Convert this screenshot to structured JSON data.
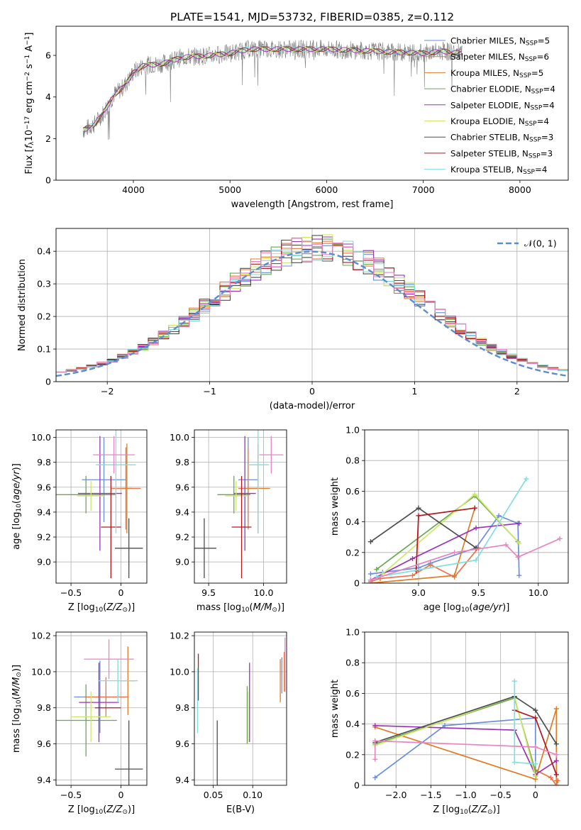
{
  "figure_title": "PLATE=1541, MJD=53732, FIBERID=0385, z=0.112",
  "colors": {
    "Chabrier MILES": "#6a8fd6",
    "Salpeter MILES": "#e9744a",
    "Kroupa MILES": "#e07b28",
    "Chabrier ELODIE": "#6aa84f",
    "Salpeter ELODIE": "#9b30b7",
    "Kroupa ELODIE": "#cde86a",
    "Chabrier STELIB": "#4d4d4d",
    "Salpeter STELIB": "#b3191c",
    "Kroupa STELIB": "#80dede",
    "pink": "#e884c0",
    "normal_curve": "#5b8bd0",
    "data_spectrum": "#7f7f7f",
    "grid": "#b0b0b0"
  },
  "chart_data": [
    {
      "id": "spectrum",
      "type": "line",
      "title": "PLATE=1541, MJD=53732, FIBERID=0385, z=0.112",
      "xlabel": "wavelength [Angstrom, rest frame]",
      "ylabel": "Flux [f_λ 10^-17 erg cm^-2 s^-1 A^-1]",
      "xlim": [
        3200,
        8500
      ],
      "ylim": [
        0,
        7.4
      ],
      "xticks": [
        4000,
        5000,
        6000,
        7000,
        8000
      ],
      "yticks": [
        0,
        2,
        4,
        6
      ],
      "grid": false,
      "legend_position": "right",
      "legend": [
        "Chabrier MILES, N_SSP=5",
        "Salpeter MILES, N_SSP=6",
        "Kroupa MILES, N_SSP=5",
        "Chabrier ELODIE, N_SSP=4",
        "Salpeter ELODIE, N_SSP=4",
        "Kroupa ELODIE, N_SSP=4",
        "Chabrier STELIB, N_SSP=3",
        "Salpeter STELIB, N_SSP=3",
        "Kroupa STELIB, N_SSP=4"
      ],
      "continuum": {
        "x": [
          3480,
          3600,
          3700,
          3800,
          3900,
          3950,
          4000,
          4100,
          4300,
          4500,
          4800,
          5000,
          5200,
          5500,
          6000,
          6500,
          7000,
          7200,
          7400
        ],
        "y": [
          2.4,
          2.7,
          3.3,
          4.1,
          4.5,
          4.8,
          5.2,
          5.5,
          5.6,
          5.9,
          6.0,
          6.1,
          6.3,
          6.3,
          6.3,
          6.2,
          6.1,
          6.2,
          6.1
        ]
      }
    },
    {
      "id": "residuals",
      "type": "line",
      "xlabel": "(data-model)/error",
      "ylabel": "Normed distribution",
      "xlim": [
        -2.5,
        2.5
      ],
      "ylim": [
        0,
        0.47
      ],
      "xticks": [
        -2,
        -1,
        0,
        1,
        2
      ],
      "yticks": [
        0.0,
        0.1,
        0.2,
        0.3,
        0.4
      ],
      "grid": true,
      "legend_position": "top-right",
      "legend": [
        "𝒩(0, 1)"
      ],
      "bin_width": 0.1,
      "normal": {
        "mean": 0,
        "sigma": 1
      }
    },
    {
      "id": "age_vs_Z",
      "type": "scatter",
      "xlabel": "Z [log10(Z/Z⊙)]",
      "ylabel": "age [log10(age/yr)]",
      "xlim": [
        -0.65,
        0.26
      ],
      "ylim": [
        8.83,
        10.06
      ],
      "xticks": [
        -0.5,
        0.0
      ],
      "yticks": [
        9.0,
        9.2,
        9.4,
        9.6,
        9.8,
        10.0
      ],
      "grid": true,
      "crosses": [
        {
          "color": "Chabrier MILES",
          "x": -0.17,
          "xerr": 0.22,
          "y": 9.66,
          "yerr": 0.34
        },
        {
          "color": "Salpeter MILES",
          "x": 0.05,
          "xerr": 0.15,
          "y": 9.59,
          "yerr": 0.33
        },
        {
          "color": "Kroupa MILES",
          "x": 0.06,
          "xerr": 0.05,
          "y": 9.59,
          "yerr": 0.36
        },
        {
          "color": "Chabrier ELODIE",
          "x": -0.35,
          "xerr": 0.3,
          "y": 9.54,
          "yerr": 0.15
        },
        {
          "color": "Salpeter ELODIE",
          "x": -0.21,
          "xerr": 0.22,
          "y": 9.55,
          "yerr": 0.46
        },
        {
          "color": "Kroupa ELODIE",
          "x": -0.3,
          "xerr": 0.14,
          "y": 9.53,
          "yerr": 0.12
        },
        {
          "color": "Chabrier STELIB",
          "x": 0.08,
          "xerr": 0.14,
          "y": 9.11,
          "yerr": 0.24
        },
        {
          "color": "Salpeter STELIB",
          "x": -0.1,
          "xerr": 0.1,
          "y": 9.28,
          "yerr": 0.41
        },
        {
          "color": "Kroupa STELIB",
          "x": -0.05,
          "xerr": 0.2,
          "y": 9.78,
          "yerr": 0.55
        },
        {
          "color": "pink",
          "x": -0.07,
          "xerr": 0.21,
          "y": 9.86,
          "yerr": 0.15
        }
      ]
    },
    {
      "id": "age_vs_mass",
      "type": "scatter",
      "xlabel": "mass [log10(M/M⊙)]",
      "ylabel": "",
      "xlim": [
        9.37,
        10.21
      ],
      "ylim": [
        8.83,
        10.06
      ],
      "xticks": [
        9.5,
        10.0
      ],
      "yticks": [
        9.0,
        9.2,
        9.4,
        9.6,
        9.8,
        10.0
      ],
      "grid": true,
      "crosses": [
        {
          "color": "Chabrier MILES",
          "x": 9.86,
          "xerr": 0.09,
          "y": 9.66,
          "yerr": 0.34
        },
        {
          "color": "Salpeter MILES",
          "x": 9.86,
          "xerr": 0.09,
          "y": 9.59,
          "yerr": 0.33
        },
        {
          "color": "Kroupa MILES",
          "x": 9.95,
          "xerr": 0.11,
          "y": 9.59,
          "yerr": 0.36
        },
        {
          "color": "Chabrier ELODIE",
          "x": 9.73,
          "xerr": 0.15,
          "y": 9.54,
          "yerr": 0.15
        },
        {
          "color": "Salpeter ELODIE",
          "x": 9.83,
          "xerr": 0.1,
          "y": 9.55,
          "yerr": 0.46
        },
        {
          "color": "Kroupa ELODIE",
          "x": 9.75,
          "xerr": 0.1,
          "y": 9.53,
          "yerr": 0.12
        },
        {
          "color": "Chabrier STELIB",
          "x": 9.46,
          "xerr": 0.11,
          "y": 9.11,
          "yerr": 0.24
        },
        {
          "color": "Salpeter STELIB",
          "x": 9.8,
          "xerr": 0.09,
          "y": 9.28,
          "yerr": 0.41
        },
        {
          "color": "Kroupa STELIB",
          "x": 9.95,
          "xerr": 0.1,
          "y": 9.78,
          "yerr": 0.55
        },
        {
          "color": "pink",
          "x": 10.07,
          "xerr": 0.11,
          "y": 9.86,
          "yerr": 0.15
        }
      ]
    },
    {
      "id": "weight_vs_age",
      "type": "line",
      "xlabel": "age [log10(age/yr)]",
      "ylabel": "mass weight",
      "xlim": [
        8.55,
        10.25
      ],
      "ylim": [
        0.0,
        1.0
      ],
      "xticks": [
        9.0,
        9.5,
        10.0
      ],
      "yticks": [
        0.0,
        0.2,
        0.4,
        0.6,
        0.8,
        1.0
      ],
      "grid": true,
      "series": [
        {
          "color": "Chabrier MILES",
          "x": [
            8.6,
            8.7,
            9.0,
            9.1,
            9.48,
            9.67,
            9.83,
            9.84
          ],
          "y": [
            0.06,
            0.07,
            0.1,
            0.13,
            0.23,
            0.44,
            0.39,
            0.05
          ]
        },
        {
          "color": "Salpeter MILES",
          "x": [
            8.6,
            8.68,
            8.95,
            9.1,
            9.3,
            9.5
          ],
          "y": [
            0.01,
            0.03,
            0.05,
            0.12,
            0.04,
            0.23
          ]
        },
        {
          "color": "Kroupa MILES",
          "x": [
            8.6,
            9.3,
            9.47
          ],
          "y": [
            0.0,
            0.05,
            0.49
          ]
        },
        {
          "color": "Chabrier ELODIE",
          "x": [
            8.65,
            9.47,
            9.83
          ],
          "y": [
            0.09,
            0.57,
            0.27
          ]
        },
        {
          "color": "Salpeter ELODIE",
          "x": [
            8.6,
            8.95,
            9.48,
            9.84
          ],
          "y": [
            0.02,
            0.16,
            0.36,
            0.39
          ]
        },
        {
          "color": "Kroupa ELODIE",
          "x": [
            8.7,
            9.47,
            9.84
          ],
          "y": [
            0.06,
            0.58,
            0.26
          ]
        },
        {
          "color": "Chabrier STELIB",
          "x": [
            8.6,
            9.0,
            9.48
          ],
          "y": [
            0.27,
            0.49,
            0.23
          ]
        },
        {
          "color": "Salpeter STELIB",
          "x": [
            8.98,
            9.0,
            9.47
          ],
          "y": [
            0.08,
            0.44,
            0.49
          ]
        },
        {
          "color": "Kroupa STELIB",
          "x": [
            8.65,
            9.48,
            9.9
          ],
          "y": [
            0.04,
            0.15,
            0.68
          ]
        },
        {
          "color": "pink",
          "x": [
            8.6,
            9.3,
            9.73,
            9.83,
            10.18
          ],
          "y": [
            0.02,
            0.2,
            0.25,
            0.17,
            0.29
          ]
        }
      ]
    },
    {
      "id": "mass_vs_Z",
      "type": "scatter",
      "xlabel": "Z [log10(Z/Z⊙)]",
      "ylabel": "mass [log10(M/M⊙)]",
      "xlim": [
        -0.65,
        0.26
      ],
      "ylim": [
        9.37,
        10.22
      ],
      "xticks": [
        -0.5,
        0.0
      ],
      "yticks": [
        9.4,
        9.6,
        9.8,
        10.0,
        10.2
      ],
      "grid": true,
      "crosses": [
        {
          "color": "Chabrier MILES",
          "x": -0.21,
          "xerr": 0.26,
          "y": 9.86,
          "yerr": 0.2
        },
        {
          "color": "Salpeter MILES",
          "x": -0.15,
          "xerr": 0.22,
          "y": 9.86,
          "yerr": 0.11
        },
        {
          "color": "Kroupa MILES",
          "x": 0.07,
          "xerr": 0.07,
          "y": 9.95,
          "yerr": 0.19
        },
        {
          "color": "Chabrier ELODIE",
          "x": -0.35,
          "xerr": 0.31,
          "y": 9.73,
          "yerr": 0.2
        },
        {
          "color": "Salpeter ELODIE",
          "x": -0.22,
          "xerr": 0.2,
          "y": 9.83,
          "yerr": 0.22
        },
        {
          "color": "Kroupa ELODIE",
          "x": -0.3,
          "xerr": 0.2,
          "y": 9.75,
          "yerr": 0.14
        },
        {
          "color": "Chabrier STELIB",
          "x": 0.08,
          "xerr": 0.14,
          "y": 9.46,
          "yerr": 0.27
        },
        {
          "color": "Salpeter STELIB",
          "x": -0.13,
          "xerr": 0.13,
          "y": 9.8,
          "yerr": 0.0
        },
        {
          "color": "Kroupa STELIB",
          "x": -0.03,
          "xerr": 0.2,
          "y": 9.95,
          "yerr": 0.12
        },
        {
          "color": "pink",
          "x": -0.12,
          "xerr": 0.25,
          "y": 10.07,
          "yerr": 0.11
        }
      ]
    },
    {
      "id": "mass_vs_ebv",
      "type": "scatter",
      "xlabel": "E(B-V)",
      "ylabel": "",
      "xlim": [
        0.026,
        0.143
      ],
      "ylim": [
        9.37,
        10.22
      ],
      "xticks": [
        0.05,
        0.1
      ],
      "yticks": [
        9.4,
        9.6,
        9.8,
        10.0,
        10.2
      ],
      "grid": true,
      "crosses": [
        {
          "color": "Chabrier MILES",
          "x": 0.137,
          "xerr": 0,
          "y": 9.98,
          "yerr": 0.1
        },
        {
          "color": "Salpeter MILES",
          "x": 0.14,
          "xerr": 0,
          "y": 10.0,
          "yerr": 0.11
        },
        {
          "color": "Kroupa MILES",
          "x": 0.135,
          "xerr": 0,
          "y": 9.95,
          "yerr": 0.12
        },
        {
          "color": "Chabrier ELODIE",
          "x": 0.093,
          "xerr": 0,
          "y": 9.76,
          "yerr": 0.16
        },
        {
          "color": "Salpeter ELODIE",
          "x": 0.096,
          "xerr": 0,
          "y": 9.83,
          "yerr": 0.22
        },
        {
          "color": "Kroupa ELODIE",
          "x": 0.094,
          "xerr": 0,
          "y": 9.75,
          "yerr": 0.14
        },
        {
          "color": "Chabrier STELIB",
          "x": 0.055,
          "xerr": 0,
          "y": 9.5,
          "yerr": 0.23
        },
        {
          "color": "Salpeter STELIB",
          "x": 0.031,
          "xerr": 0,
          "y": 9.97,
          "yerr": 0.13
        },
        {
          "color": "Kroupa STELIB",
          "x": 0.03,
          "xerr": 0,
          "y": 9.84,
          "yerr": 0.18
        },
        {
          "color": "pink",
          "x": 0.141,
          "xerr": 0,
          "y": 10.04,
          "yerr": 0.15
        }
      ]
    },
    {
      "id": "weight_vs_Z",
      "type": "line",
      "xlabel": "Z [log10(Z/Z⊙)]",
      "ylabel": "mass weight",
      "xlim": [
        -2.45,
        0.47
      ],
      "ylim": [
        0.0,
        1.0
      ],
      "xticks": [
        -2.0,
        -1.5,
        -1.0,
        -0.5,
        0.0
      ],
      "yticks": [
        0.0,
        0.2,
        0.4,
        0.6,
        0.8,
        1.0
      ],
      "grid": true,
      "series": [
        {
          "color": "Chabrier MILES",
          "x": [
            -2.3,
            -1.3,
            0.0,
            0.0
          ],
          "y": [
            0.05,
            0.39,
            0.44,
            0.06
          ]
        },
        {
          "color": "Salpeter MILES",
          "x": [
            0.0,
            0.22,
            0.3,
            0.32
          ],
          "y": [
            0.1,
            0.05,
            0.0,
            0.03
          ]
        },
        {
          "color": "Kroupa MILES",
          "x": [
            -2.3,
            0.0,
            0.3,
            0.3
          ],
          "y": [
            0.38,
            0.04,
            0.5,
            0.03
          ]
        },
        {
          "color": "Chabrier ELODIE",
          "x": [
            -2.3,
            -0.3,
            0.0
          ],
          "y": [
            0.27,
            0.57,
            0.09
          ]
        },
        {
          "color": "Salpeter ELODIE",
          "x": [
            -2.3,
            -0.3,
            0.0,
            0.3
          ],
          "y": [
            0.39,
            0.36,
            0.07,
            0.16
          ]
        },
        {
          "color": "Kroupa ELODIE",
          "x": [
            -2.3,
            -0.3,
            0.0
          ],
          "y": [
            0.26,
            0.58,
            0.06
          ]
        },
        {
          "color": "Chabrier STELIB",
          "x": [
            -2.3,
            -0.3,
            0.0,
            0.3
          ],
          "y": [
            0.28,
            0.58,
            0.49,
            0.27
          ]
        },
        {
          "color": "Salpeter STELIB",
          "x": [
            -0.3,
            0.0,
            0.3
          ],
          "y": [
            0.49,
            0.44,
            0.07
          ]
        },
        {
          "color": "Kroupa STELIB",
          "x": [
            -0.3,
            -0.3,
            0.0
          ],
          "y": [
            0.68,
            0.15,
            0.14
          ]
        },
        {
          "color": "pink",
          "x": [
            -2.3,
            -2.3,
            0.0,
            0.3
          ],
          "y": [
            0.17,
            0.29,
            0.25,
            0.2
          ]
        }
      ]
    }
  ]
}
